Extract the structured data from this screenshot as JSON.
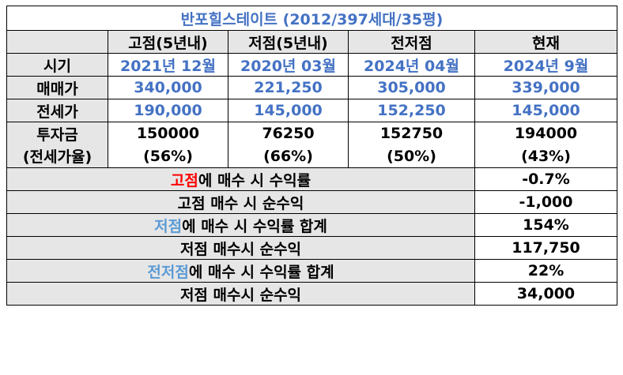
{
  "title": "반포힐스테이트 (2012/397세대/35평)",
  "columns": [
    "",
    "고점(5년내)",
    "저점(5년내)",
    "전저점",
    "현재"
  ],
  "rows": {
    "period": {
      "label": "시기",
      "values": [
        "2021년 12월",
        "2020년 03월",
        "2024년 04월",
        "2024년 9월"
      ]
    },
    "sale": {
      "label": "매매가",
      "values": [
        "340,000",
        "221,250",
        "305,000",
        "339,000"
      ]
    },
    "jeonse": {
      "label": "전세가",
      "values": [
        "190,000",
        "145,000",
        "152,250",
        "145,000"
      ]
    },
    "invest": {
      "label": "투자금",
      "values": [
        "150000",
        "76250",
        "152750",
        "194000"
      ]
    },
    "ratio": {
      "label": "(전세가율)",
      "values": [
        "(56%)",
        "(66%)",
        "(50%)",
        "(43%)"
      ]
    }
  },
  "summary": [
    {
      "highlight": "고점",
      "text": "에 매수 시 수익률",
      "value": "-0.7%"
    },
    {
      "highlight": "",
      "text": "고점 매수 시 순수익",
      "value": "-1,000"
    },
    {
      "highlight": "저점",
      "text": "에 매수 시 수익률 합계",
      "value": "154%"
    },
    {
      "highlight": "",
      "text": "저점 매수시 순수익",
      "value": "117,750"
    },
    {
      "highlight": "전저점",
      "text": "에 매수 시 수익률 합계",
      "value": "22%"
    },
    {
      "highlight": "",
      "text": "저점 매수시 순수익",
      "value": "34,000"
    }
  ],
  "colors": {
    "blue_text": "#4472c4",
    "header_bg": "#e7e6e6",
    "red": "#ff0000",
    "light_blue": "#5b9bd5"
  }
}
